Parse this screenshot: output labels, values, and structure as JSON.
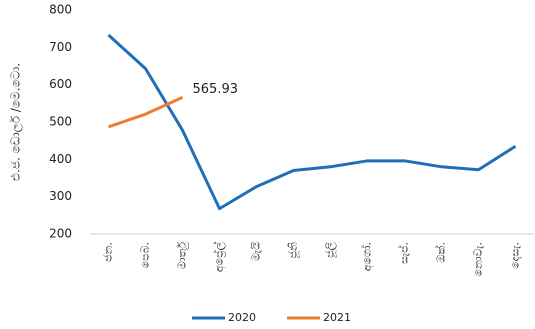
{
  "chart_data": {
    "type": "line",
    "y_label": "එ.ජ. ඩොලර් /මෙ.ටො.",
    "categories": [
      "ජන.",
      "පෙබ.",
      "මාර්තු",
      "අප්‍රේල්",
      "මැයි",
      "ජූනි",
      "ජූලි",
      "අගෝ.",
      "සැප්.",
      "ඔක්.",
      "නොවැ.",
      "දෙසැ."
    ],
    "series": [
      {
        "name": "2020",
        "color": "#1f6fb8",
        "values": [
          733,
          643,
          478,
          268,
          327,
          370,
          380,
          396,
          396,
          380,
          372,
          435
        ]
      },
      {
        "name": "2021",
        "color": "#ed7d31",
        "values": [
          487,
          521,
          565.93,
          null,
          null,
          null,
          null,
          null,
          null,
          null,
          null,
          null
        ]
      }
    ],
    "annotation_index": [
      1,
      2
    ],
    "ylim": [
      200,
      800
    ],
    "yticks": [
      200,
      300,
      400,
      500,
      600,
      700,
      800
    ],
    "grid": false,
    "legend": "bottom"
  }
}
